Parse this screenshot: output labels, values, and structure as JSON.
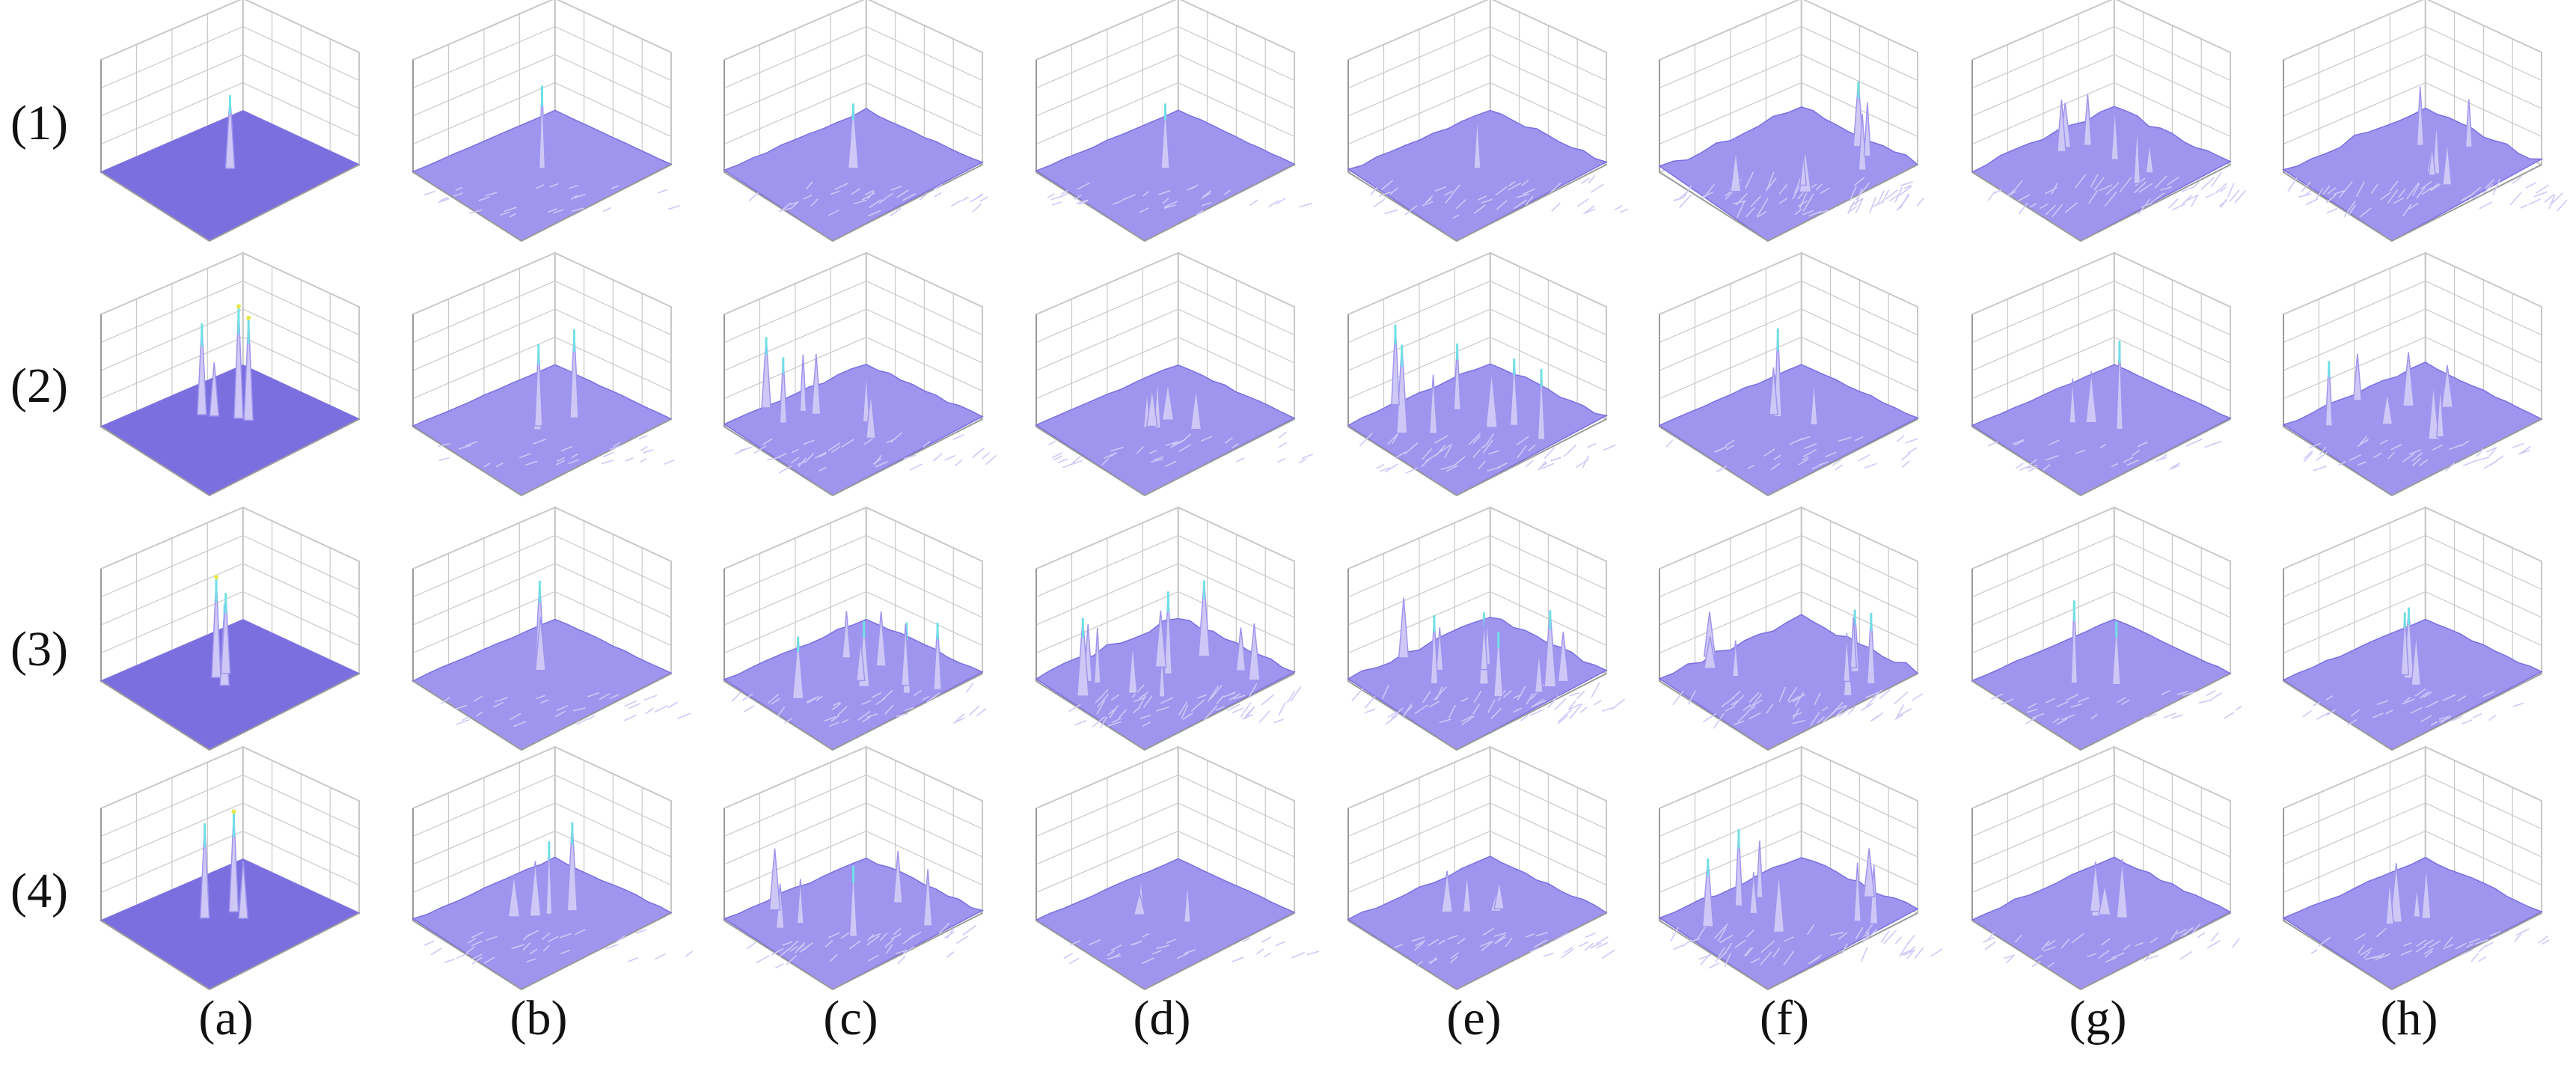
{
  "figure": {
    "row_labels": [
      "(1)",
      "(2)",
      "(3)",
      "(4)"
    ],
    "column_labels": [
      "(a)",
      "(b)",
      "(c)",
      "(d)",
      "(e)",
      "(f)",
      "(g)",
      "(h)"
    ],
    "colors": {
      "surface_base": "#7b6fe0",
      "surface_light": "#cfc8f6",
      "surface_mid": "#9f95ee",
      "peak_cyan": "#6fe0e6",
      "peak_yellow": "#e8e84a",
      "axis_grid": "#c8c8c8",
      "axis_line": "#9a9a9a",
      "label_text": "#111111"
    },
    "panels": [
      [
        {
          "peak_count": 1,
          "peak_height": 0.62,
          "noise": 0.0,
          "flat": true
        },
        {
          "peak_count": 1,
          "peak_height": 0.7,
          "noise": 0.05,
          "flat": false
        },
        {
          "peak_count": 1,
          "peak_height": 0.55,
          "noise": 0.25,
          "flat": false
        },
        {
          "peak_count": 1,
          "peak_height": 0.55,
          "noise": 0.15,
          "flat": false
        },
        {
          "peak_count": 1,
          "peak_height": 0.45,
          "noise": 0.35,
          "flat": false
        },
        {
          "peak_count": 6,
          "peak_height": 0.55,
          "noise": 0.7,
          "flat": false
        },
        {
          "peak_count": 6,
          "peak_height": 0.5,
          "noise": 0.55,
          "flat": false
        },
        {
          "peak_count": 6,
          "peak_height": 0.5,
          "noise": 0.6,
          "flat": false
        }
      ],
      [
        {
          "peak_count": 4,
          "peak_height": 0.95,
          "noise": 0.0,
          "flat": true
        },
        {
          "peak_count": 3,
          "peak_height": 0.75,
          "noise": 0.08,
          "flat": false
        },
        {
          "peak_count": 6,
          "peak_height": 0.6,
          "noise": 0.3,
          "flat": false
        },
        {
          "peak_count": 5,
          "peak_height": 0.45,
          "noise": 0.2,
          "flat": false
        },
        {
          "peak_count": 7,
          "peak_height": 0.75,
          "noise": 0.45,
          "flat": false
        },
        {
          "peak_count": 3,
          "peak_height": 0.75,
          "noise": 0.2,
          "flat": false
        },
        {
          "peak_count": 3,
          "peak_height": 0.75,
          "noise": 0.12,
          "flat": false
        },
        {
          "peak_count": 7,
          "peak_height": 0.55,
          "noise": 0.3,
          "flat": false
        }
      ],
      [
        {
          "peak_count": 3,
          "peak_height": 0.85,
          "noise": 0.0,
          "flat": true
        },
        {
          "peak_count": 2,
          "peak_height": 0.75,
          "noise": 0.15,
          "flat": false
        },
        {
          "peak_count": 8,
          "peak_height": 0.6,
          "noise": 0.3,
          "flat": false
        },
        {
          "peak_count": 10,
          "peak_height": 0.7,
          "noise": 0.6,
          "flat": false
        },
        {
          "peak_count": 10,
          "peak_height": 0.65,
          "noise": 0.55,
          "flat": false
        },
        {
          "peak_count": 8,
          "peak_height": 0.6,
          "noise": 0.55,
          "flat": false
        },
        {
          "peak_count": 2,
          "peak_height": 0.7,
          "noise": 0.15,
          "flat": false
        },
        {
          "peak_count": 3,
          "peak_height": 0.6,
          "noise": 0.2,
          "flat": false
        }
      ],
      [
        {
          "peak_count": 3,
          "peak_height": 0.85,
          "noise": 0.0,
          "flat": true
        },
        {
          "peak_count": 4,
          "peak_height": 0.75,
          "noise": 0.2,
          "flat": false
        },
        {
          "peak_count": 6,
          "peak_height": 0.6,
          "noise": 0.35,
          "flat": false
        },
        {
          "peak_count": 3,
          "peak_height": 0.35,
          "noise": 0.12,
          "flat": false
        },
        {
          "peak_count": 4,
          "peak_height": 0.35,
          "noise": 0.3,
          "flat": false
        },
        {
          "peak_count": 8,
          "peak_height": 0.65,
          "noise": 0.55,
          "flat": false
        },
        {
          "peak_count": 4,
          "peak_height": 0.5,
          "noise": 0.3,
          "flat": false
        },
        {
          "peak_count": 4,
          "peak_height": 0.5,
          "noise": 0.3,
          "flat": false
        }
      ]
    ]
  }
}
